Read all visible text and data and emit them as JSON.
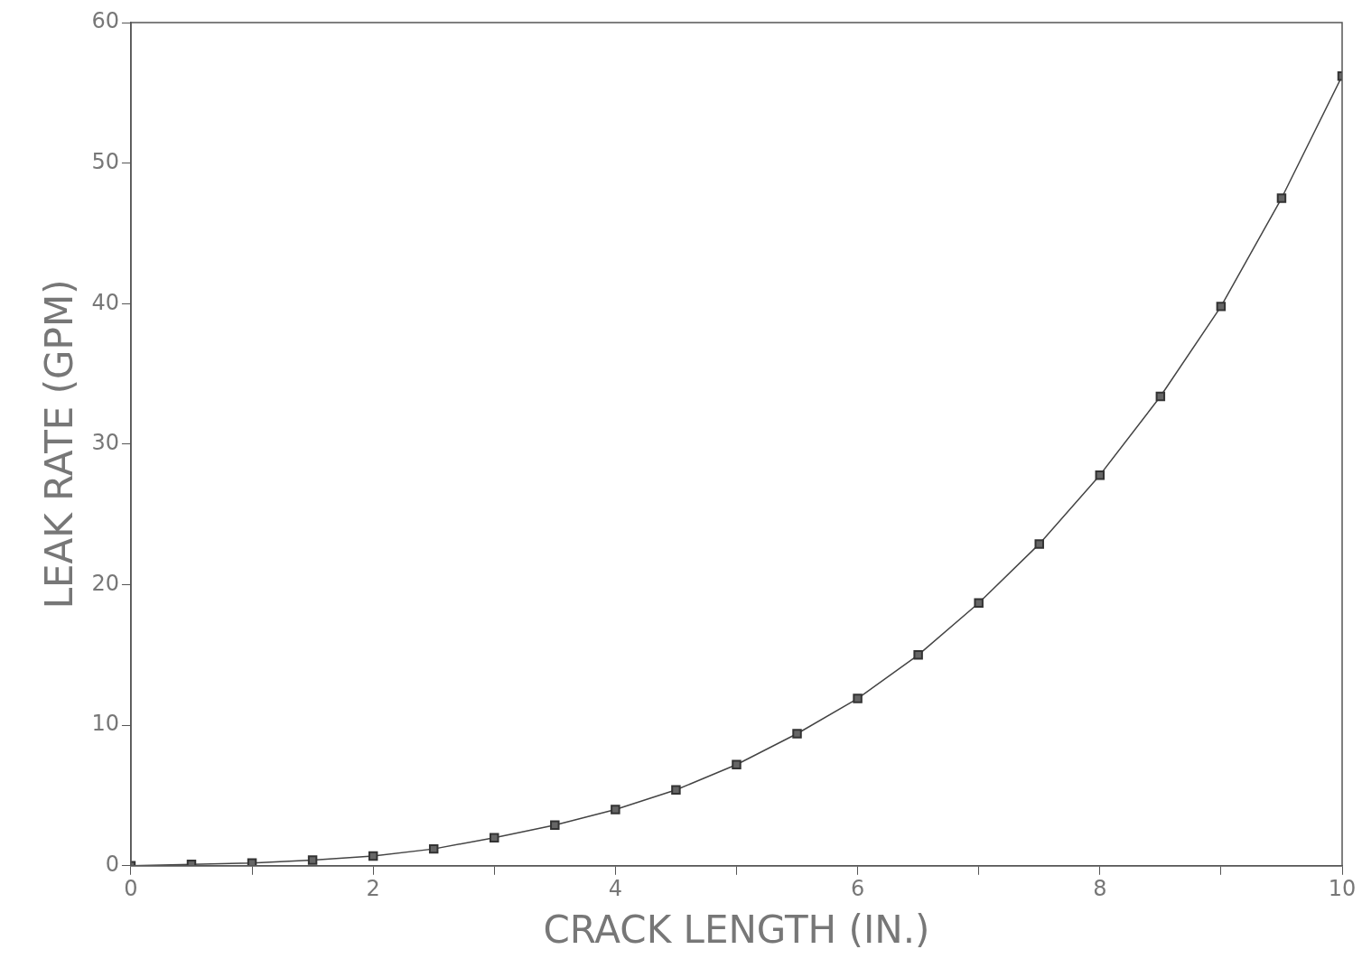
{
  "chart_data": {
    "type": "line",
    "xlabel": "CRACK LENGTH (IN.)",
    "ylabel": "LEAK RATE (GPM)",
    "x": [
      0,
      0.5,
      1,
      1.5,
      2,
      2.5,
      3,
      3.5,
      4,
      4.5,
      5,
      5.5,
      6,
      6.5,
      7,
      7.5,
      8,
      8.5,
      9,
      9.5,
      10
    ],
    "series": [
      {
        "color": "#444444",
        "values": [
          0,
          0.1,
          0.2,
          0.4,
          0.7,
          1.2,
          2.0,
          2.9,
          4.0,
          5.4,
          7.2,
          9.4,
          11.9,
          15.0,
          18.7,
          22.9,
          27.8,
          33.4,
          39.8,
          47.5,
          56.2
        ]
      }
    ],
    "xlim": [
      0,
      10
    ],
    "xticks": [
      0,
      {
        "value": 1,
        "label": null
      },
      2,
      {
        "value": 3,
        "label": null
      },
      4,
      {
        "value": 5,
        "label": null
      },
      6,
      {
        "value": 7,
        "label": null
      },
      8,
      {
        "value": 9,
        "label": null
      },
      10
    ],
    "ylim": [
      0,
      60
    ],
    "yticks": [
      0,
      10,
      20,
      30,
      40,
      50,
      60
    ],
    "grid": false,
    "legend": false,
    "marker": "square",
    "line_style": "solid"
  }
}
